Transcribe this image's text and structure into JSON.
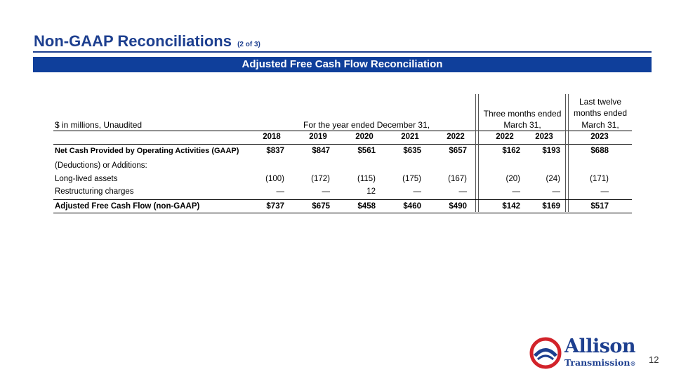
{
  "header": {
    "title": "Non-GAAP Reconciliations",
    "subtitle": "(2 of 3)"
  },
  "banner": "Adjusted Free Cash Flow Reconciliation",
  "table": {
    "unit_label": "$ in millions, Unaudited",
    "group_year": "For the year ended December 31,",
    "group_three_1": "Three months ended",
    "group_three_2": "March 31,",
    "group_ltm_1": "Last twelve",
    "group_ltm_2": "months ended",
    "group_ltm_3": "March 31,",
    "years": [
      "2018",
      "2019",
      "2020",
      "2021",
      "2022",
      "2022",
      "2023",
      "2023"
    ],
    "rows": [
      {
        "label": "Net Cash Provided by Operating Activities (GAAP)",
        "values": [
          "$837",
          "$847",
          "$561",
          "$635",
          "$657",
          "$162",
          "$193",
          "$688"
        ]
      },
      {
        "label": "(Deductions) or Additions:",
        "values": [
          "",
          "",
          "",
          "",
          "",
          "",
          "",
          ""
        ]
      },
      {
        "label": "Long-lived assets",
        "values": [
          "(100)",
          "(172)",
          "(115)",
          "(175)",
          "(167)",
          "(20)",
          "(24)",
          "(171)"
        ]
      },
      {
        "label": "Restructuring charges",
        "values": [
          "—",
          "—",
          "12",
          "—",
          "—",
          "—",
          "—",
          "—"
        ]
      },
      {
        "label": "Adjusted Free Cash Flow (non-GAAP)",
        "values": [
          "$737",
          "$675",
          "$458",
          "$460",
          "$490",
          "$142",
          "$169",
          "$517"
        ]
      }
    ]
  },
  "logo": {
    "name": "Allison",
    "sub": "Transmission",
    "mark": "®",
    "colors": {
      "blue": "#1d3f8f",
      "red": "#d2232a"
    }
  },
  "page_number": "12"
}
